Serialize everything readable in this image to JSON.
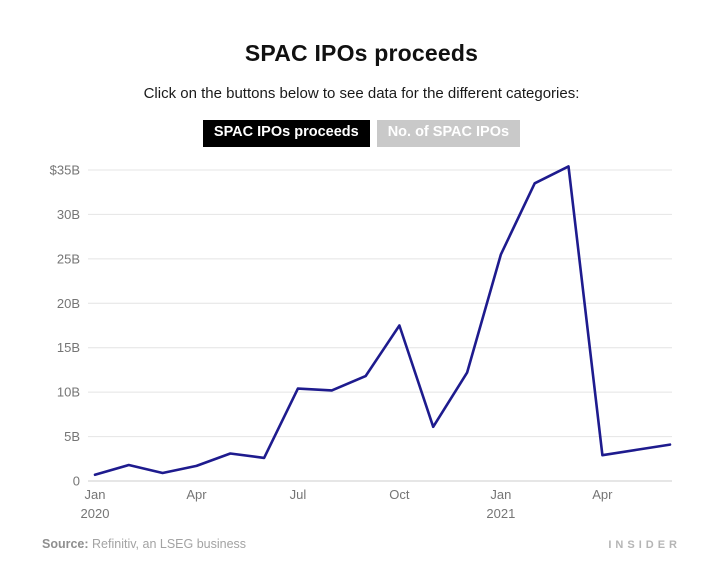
{
  "header": {
    "title": "SPAC IPOs proceeds",
    "subtitle": "Click on the buttons below to see data for the different categories:"
  },
  "buttons": [
    {
      "label": "SPAC IPOs proceeds",
      "active": true
    },
    {
      "label": "No. of SPAC IPOs",
      "active": false
    }
  ],
  "footer": {
    "source_label": "Source:",
    "source_text": "Refinitiv, an LSEG business",
    "brand": "INSIDER"
  },
  "colors": {
    "line": "#1e1b8e",
    "active_button_bg": "#000000",
    "active_button_text": "#ffffff",
    "inactive_button_bg": "#c9c9c9",
    "inactive_button_text": "#ffffff",
    "grid": "#e4e4e4",
    "axis_line": "#cccccc",
    "axis_text": "#757575"
  },
  "chart_data": {
    "type": "line",
    "title": "SPAC IPOs proceeds",
    "xlabel": "",
    "ylabel": "",
    "x": [
      "Jan 2020",
      "Feb 2020",
      "Mar 2020",
      "Apr 2020",
      "May 2020",
      "Jun 2020",
      "Jul 2020",
      "Aug 2020",
      "Sep 2020",
      "Oct 2020",
      "Nov 2020",
      "Dec 2020",
      "Jan 2021",
      "Feb 2021",
      "Mar 2021",
      "Apr 2021",
      "May 2021",
      "Jun 2021"
    ],
    "values": [
      0.7,
      1.8,
      0.9,
      1.7,
      3.1,
      2.6,
      10.4,
      10.2,
      11.8,
      17.5,
      6.1,
      12.2,
      25.5,
      33.5,
      35.4,
      2.9,
      3.5,
      4.1
    ],
    "series_name": "SPAC IPOs proceeds ($B)",
    "ylim": [
      0,
      35
    ],
    "grid": true,
    "legend": false,
    "yticks": [
      {
        "value": 0,
        "label": "0"
      },
      {
        "value": 5,
        "label": "5B"
      },
      {
        "value": 10,
        "label": "10B"
      },
      {
        "value": 15,
        "label": "15B"
      },
      {
        "value": 20,
        "label": "20B"
      },
      {
        "value": 25,
        "label": "25B"
      },
      {
        "value": 30,
        "label": "30B"
      },
      {
        "value": 35,
        "label": "$35B"
      }
    ],
    "xticks": [
      {
        "index": 0,
        "label": "Jan",
        "year": "2020"
      },
      {
        "index": 3,
        "label": "Apr"
      },
      {
        "index": 6,
        "label": "Jul"
      },
      {
        "index": 9,
        "label": "Oct"
      },
      {
        "index": 12,
        "label": "Jan",
        "year": "2021"
      },
      {
        "index": 15,
        "label": "Apr"
      }
    ]
  }
}
